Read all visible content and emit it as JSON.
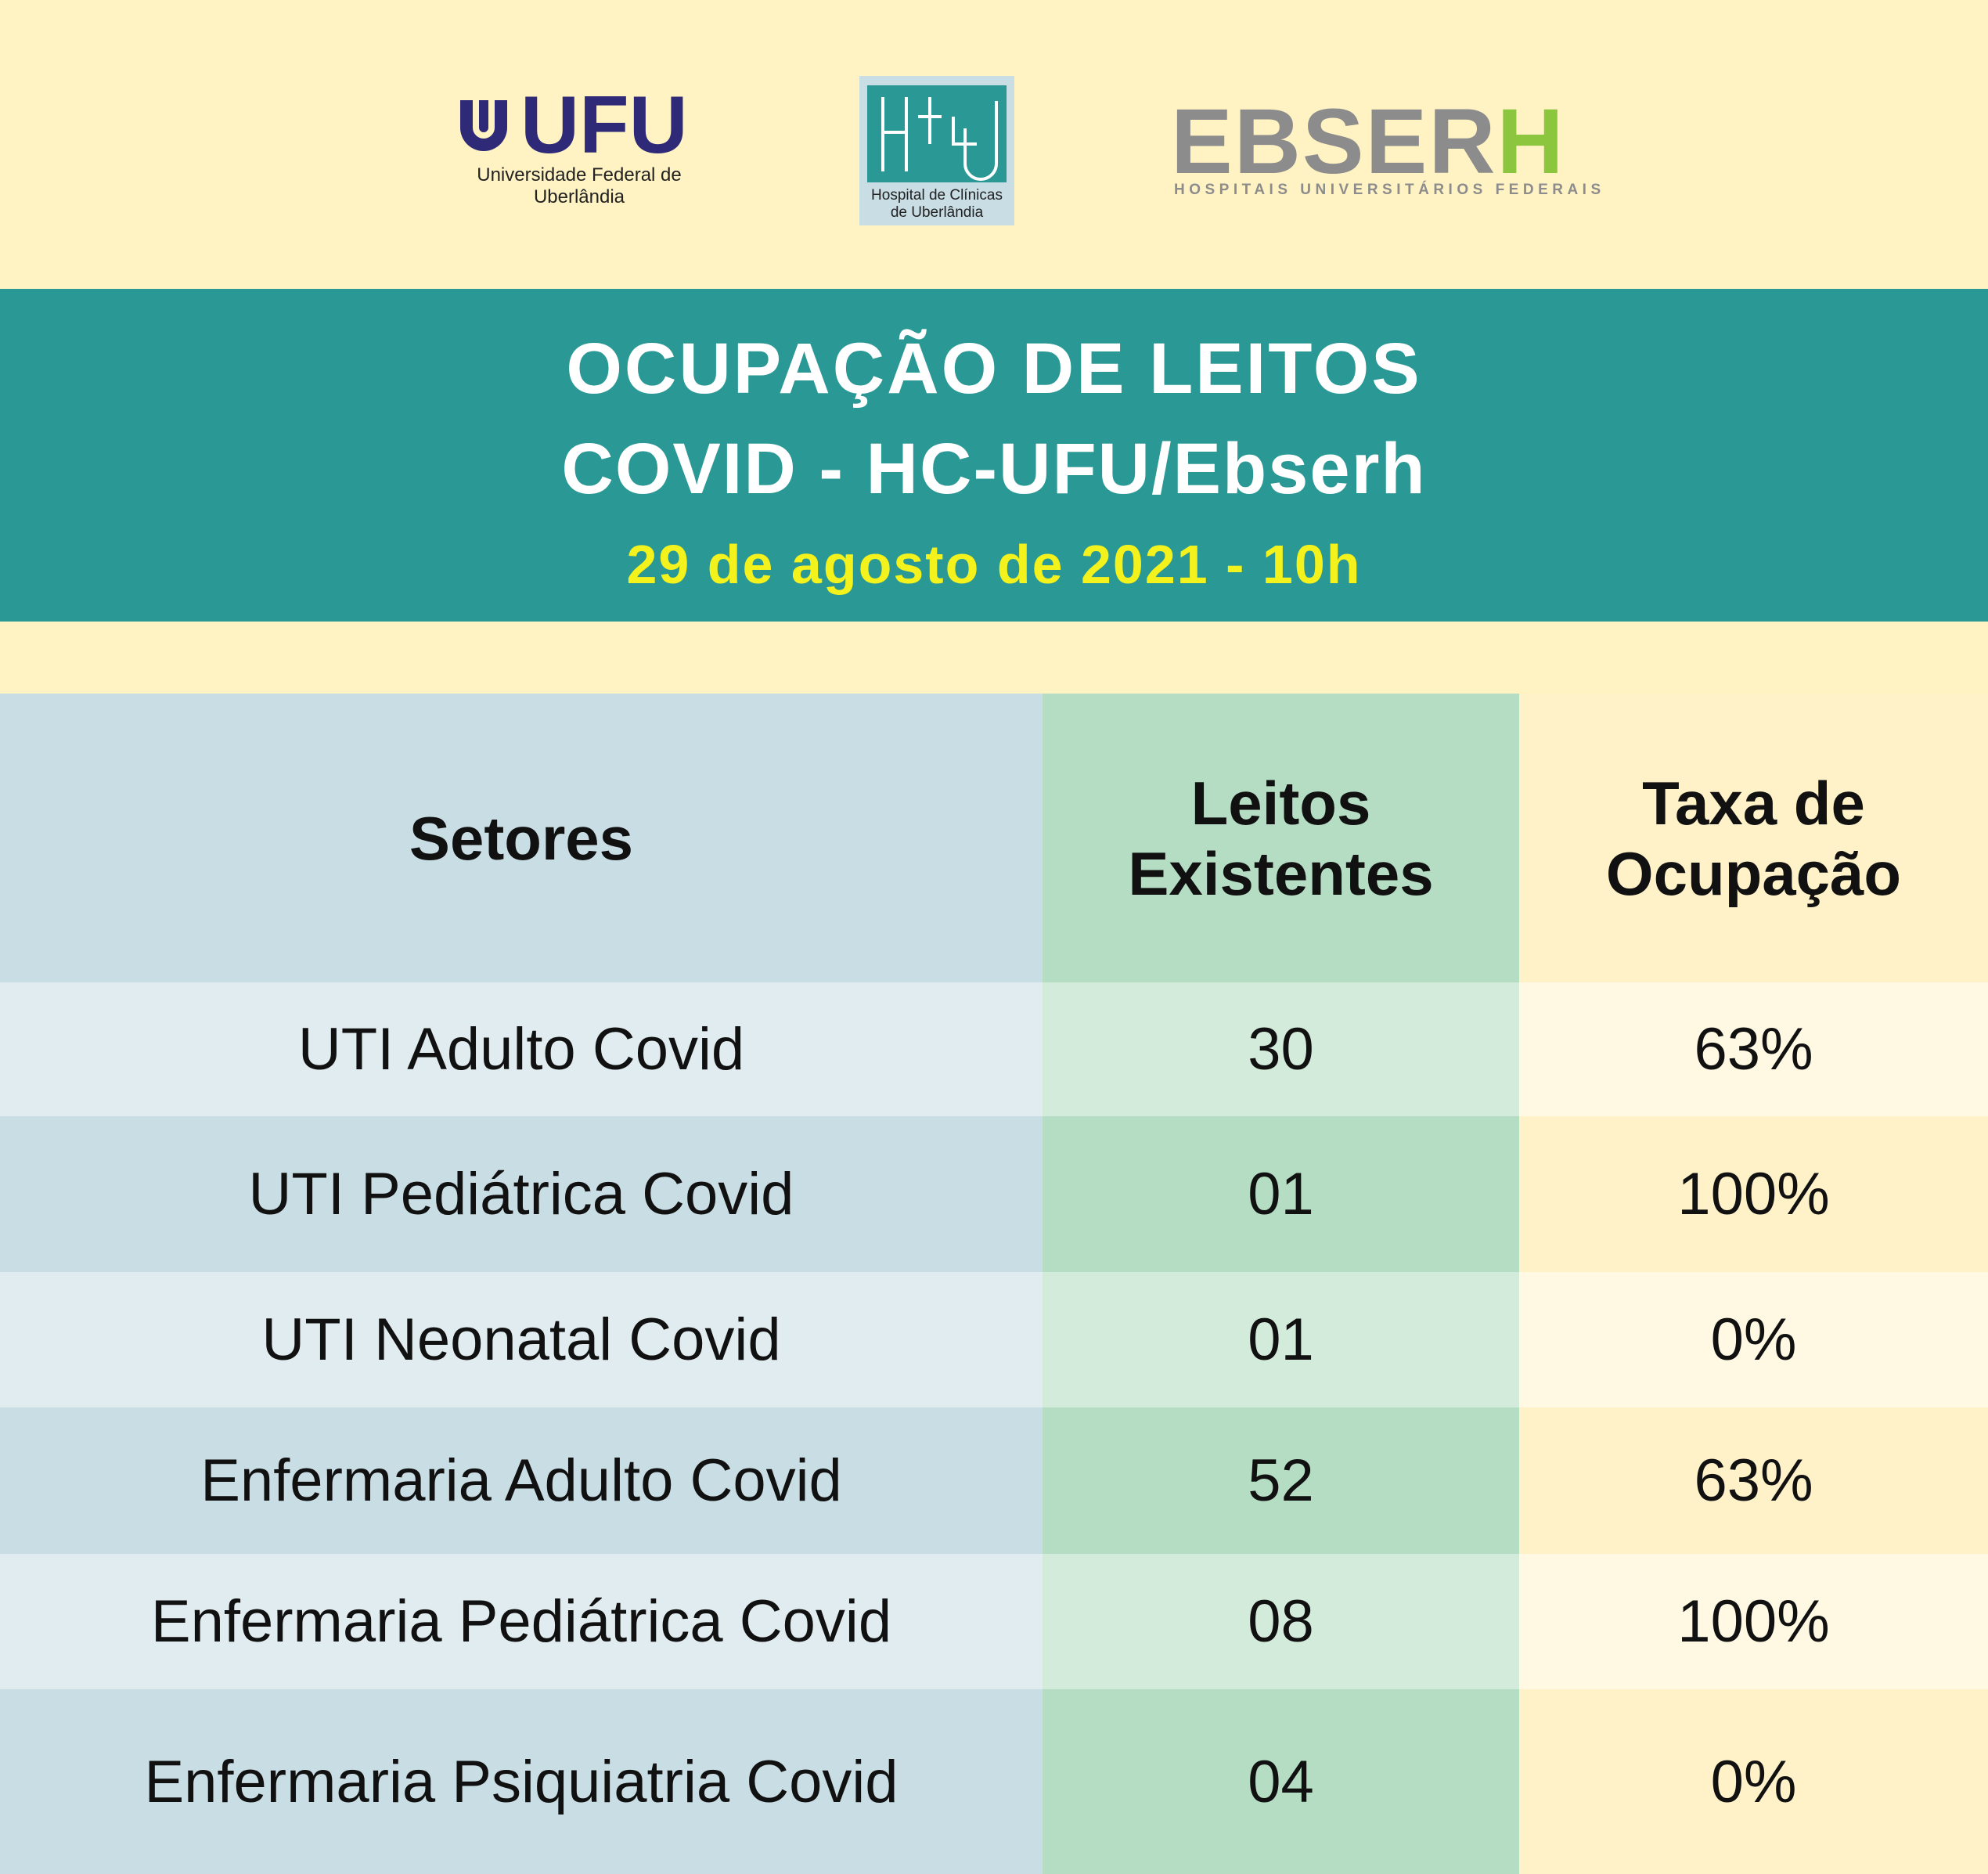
{
  "logos": {
    "ufu": {
      "name": "UFU",
      "caption": [
        "Universidade Federal de",
        "Uberlândia"
      ]
    },
    "hc": {
      "caption": [
        "Hospital de Clínicas",
        "de Uberlândia"
      ]
    },
    "ebserh": {
      "name_gray": "EBSER",
      "name_green": "H",
      "caption": "HOSPITAIS UNIVERSITÁRIOS FEDERAIS"
    }
  },
  "header": {
    "title": [
      "OCUPAÇÃO DE LEITOS",
      "COVID - HC-UFU/Ebserh"
    ],
    "date": "29 de agosto de 2021 - 10h"
  },
  "table": {
    "columns": [
      "Setores",
      "Leitos Existentes",
      "Taxa de Ocupação"
    ],
    "rows": [
      [
        "UTI Adulto Covid",
        "30",
        "63%"
      ],
      [
        "UTI Pediátrica Covid",
        "01",
        "100%"
      ],
      [
        "UTI Neonatal Covid",
        "01",
        "0%"
      ],
      [
        "Enfermaria Adulto Covid",
        "52",
        "63%"
      ],
      [
        "Enfermaria Pediátrica Covid",
        "08",
        "100%"
      ],
      [
        "Enfermaria Psiquiatria Covid",
        "04",
        "0%"
      ]
    ]
  }
}
